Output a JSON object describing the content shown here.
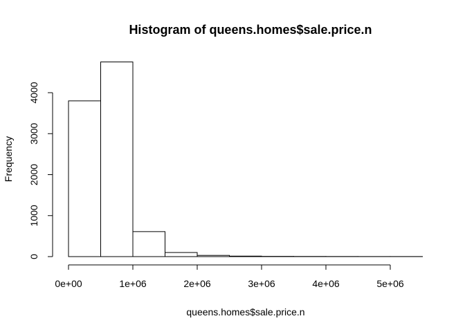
{
  "chart_data": {
    "type": "bar",
    "title": "Histogram of queens.homes$sale.price.n",
    "xlabel": "queens.homes$sale.price.n",
    "ylabel": "Frequency",
    "bin_edges": [
      0,
      500000,
      1000000,
      1500000,
      2000000,
      2500000,
      3000000,
      3500000,
      4000000,
      4500000,
      5000000,
      5500000
    ],
    "counts": [
      3800,
      4750,
      610,
      100,
      30,
      12,
      6,
      4,
      3,
      2,
      2
    ],
    "xlim": [
      0,
      5500000
    ],
    "ylim": [
      0,
      4750
    ],
    "x_ticks": [
      {
        "value": 0,
        "label": "0e+00"
      },
      {
        "value": 1000000,
        "label": "1e+06"
      },
      {
        "value": 2000000,
        "label": "2e+06"
      },
      {
        "value": 3000000,
        "label": "3e+06"
      },
      {
        "value": 4000000,
        "label": "4e+06"
      },
      {
        "value": 5000000,
        "label": "5e+06"
      }
    ],
    "y_ticks": [
      {
        "value": 0,
        "label": "0"
      },
      {
        "value": 1000,
        "label": "1000"
      },
      {
        "value": 2000,
        "label": "2000"
      },
      {
        "value": 3000,
        "label": "3000"
      },
      {
        "value": 4000,
        "label": "4000"
      }
    ],
    "grid": false,
    "legend": "none",
    "colors": {
      "bar_fill": "#ffffff",
      "bar_stroke": "#000000"
    }
  }
}
